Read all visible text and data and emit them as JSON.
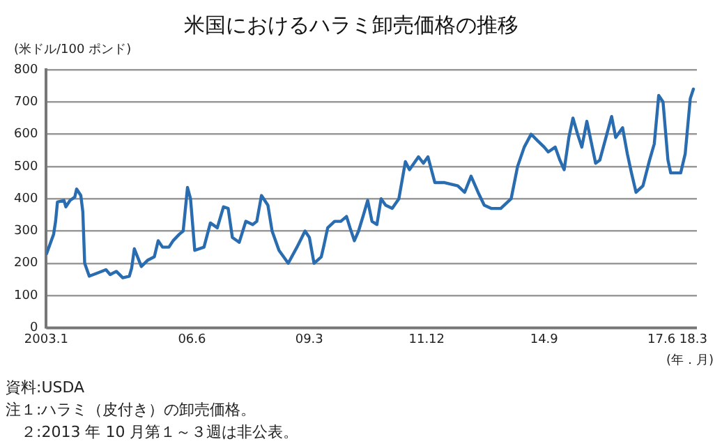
{
  "chart_data": {
    "type": "line",
    "title": "米国におけるハラミ卸売価格の推移",
    "ylabel": "(米ドル/100 ポンド)",
    "xlabel": "(年．月)",
    "annotations": [
      "資料:USDA",
      "注１:ハラミ（皮付き）の卸売価格。",
      "　２:2013 年 10 月第１～３週は非公表。"
    ],
    "xlim": [
      "2003-01",
      "2018-04"
    ],
    "xticks": [
      {
        "value": "2003-01",
        "label": "2003.1"
      },
      {
        "value": "2006-06",
        "label": "06.6"
      },
      {
        "value": "2009-03",
        "label": "09.3"
      },
      {
        "value": "2011-12",
        "label": "11.12"
      },
      {
        "value": "2014-09",
        "label": "14.9"
      },
      {
        "value": "2017-06",
        "label": "17.6"
      },
      {
        "value": "2018-03",
        "label": "18.3"
      }
    ],
    "ylim": [
      0,
      800
    ],
    "yticks": [
      0,
      100,
      200,
      300,
      400,
      500,
      600,
      700,
      800
    ],
    "grid": "y",
    "marker": "none",
    "line_style": "solid",
    "series": [
      {
        "color": "#2a6cb0",
        "x": [
          "2003-01-04",
          "2003-03-05",
          "2003-03-22",
          "2003-04-07",
          "2003-06-02",
          "2003-06-18",
          "2003-07-24",
          "2003-09-02",
          "2003-09-18",
          "2003-10-24",
          "2003-11-10",
          "2003-11-26",
          "2004-01-04",
          "2004-03-15",
          "2004-05-26",
          "2004-07-01",
          "2004-08-23",
          "2004-10-17",
          "2004-12-12",
          "2005-01-01",
          "2005-01-24",
          "2005-03-25",
          "2005-05-20",
          "2005-07-14",
          "2005-08-16",
          "2005-09-22",
          "2005-11-16",
          "2005-12-22",
          "2006-02-13",
          "2006-03-18",
          "2006-04-24",
          "2006-05-20",
          "2006-06-25",
          "2006-09-12",
          "2006-11-06",
          "2007-01-04",
          "2007-02-26",
          "2007-04-07",
          "2007-05-13",
          "2007-07-11",
          "2007-09-05",
          "2007-11-03",
          "2007-12-08",
          "2008-01-17",
          "2008-03-12",
          "2008-04-17",
          "2008-06-15",
          "2008-09-02",
          "2008-11-16",
          "2009-01-24",
          "2009-03-02",
          "2009-04-11",
          "2009-06-12",
          "2009-07-01",
          "2009-08-06",
          "2009-10-04",
          "2009-11-26",
          "2010-01-14",
          "2010-02-13",
          "2010-03-22",
          "2010-04-27",
          "2010-06-08",
          "2010-07-14",
          "2010-08-20",
          "2010-10-01",
          "2010-11-06",
          "2010-12-15",
          "2011-02-09",
          "2011-04-07",
          "2011-06-02",
          "2011-07-07",
          "2011-09-22",
          "2011-11-03",
          "2011-12-12",
          "2012-02-09",
          "2012-05-03",
          "2012-08-23",
          "2012-10-21",
          "2012-12-15",
          "2013-02-13",
          "2013-04-07",
          "2013-06-05",
          "2013-08-26",
          "2013-11-23",
          "2014-01-17",
          "2014-03-15",
          "2014-05-13",
          "2014-07-07",
          "2014-09-02",
          "2014-10-07",
          "2014-12-05",
          "2015-01-14",
          "2015-02-20",
          "2015-04-01",
          "2015-05-06",
          "2015-06-15",
          "2015-07-21",
          "2015-09-02",
          "2015-10-07",
          "2015-11-16",
          "2015-12-22",
          "2016-02-20",
          "2016-04-01",
          "2016-05-06",
          "2016-07-04",
          "2016-08-13",
          "2016-09-18",
          "2016-10-27",
          "2016-12-25",
          "2017-02-20",
          "2017-04-01",
          "2017-05-09",
          "2017-06-15",
          "2017-07-27",
          "2017-08-20",
          "2017-11-13",
          "2017-12-22",
          "2018-02-03",
          "2018-03-02"
        ],
        "values": [
          230,
          290,
          330,
          390,
          395,
          375,
          395,
          405,
          430,
          410,
          360,
          200,
          160,
          170,
          180,
          165,
          175,
          155,
          160,
          185,
          245,
          190,
          210,
          220,
          270,
          250,
          250,
          270,
          290,
          300,
          435,
          400,
          240,
          250,
          325,
          310,
          375,
          370,
          280,
          265,
          330,
          320,
          330,
          410,
          380,
          300,
          240,
          200,
          250,
          300,
          280,
          200,
          220,
          250,
          310,
          330,
          330,
          345,
          310,
          270,
          300,
          350,
          395,
          330,
          320,
          400,
          380,
          370,
          400,
          515,
          490,
          530,
          510,
          530,
          450,
          450,
          440,
          420,
          470,
          420,
          380,
          370,
          370,
          400,
          500,
          560,
          600,
          580,
          560,
          545,
          560,
          520,
          490,
          590,
          650,
          600,
          560,
          640,
          580,
          510,
          520,
          600,
          655,
          590,
          620,
          540,
          480,
          420,
          440,
          520,
          570,
          720,
          700,
          520,
          480,
          480,
          540,
          710,
          740
        ]
      }
    ]
  }
}
